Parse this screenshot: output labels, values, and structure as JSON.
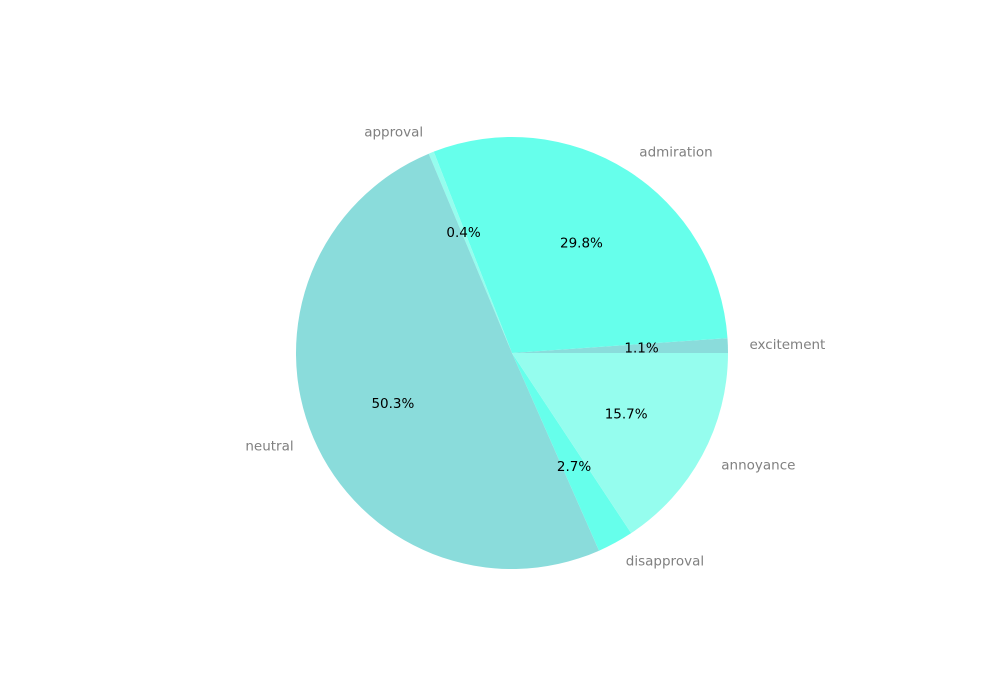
{
  "chart_data": {
    "type": "pie",
    "title": "",
    "start_angle_deg": 0,
    "direction": "counterclockwise",
    "slices": [
      {
        "label": "excitement",
        "value": 1.1,
        "pct_label": "1.1%",
        "color": "#8adcdb"
      },
      {
        "label": "admiration",
        "value": 29.8,
        "pct_label": "29.8%",
        "color": "#66ffeb"
      },
      {
        "label": "approval",
        "value": 0.4,
        "pct_label": "0.4%",
        "color": "#95fdee"
      },
      {
        "label": "neutral",
        "value": 50.3,
        "pct_label": "50.3%",
        "color": "#8adcdb"
      },
      {
        "label": "disapproval",
        "value": 2.7,
        "pct_label": "2.7%",
        "color": "#66ffeb"
      },
      {
        "label": "annoyance",
        "value": 15.7,
        "pct_label": "15.7%",
        "color": "#95fdee"
      }
    ]
  }
}
